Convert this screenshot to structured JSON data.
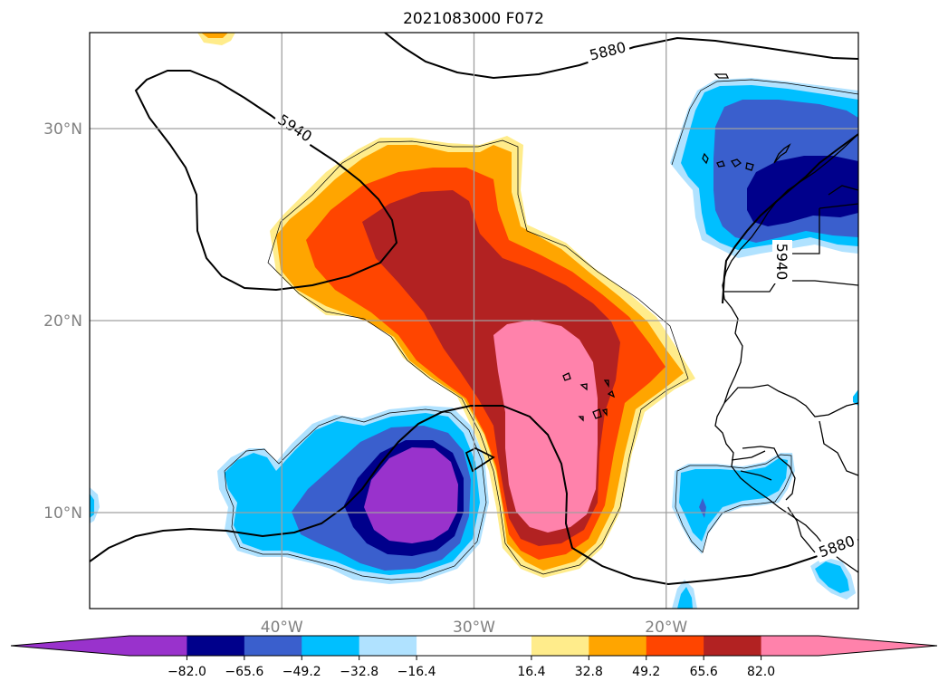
{
  "chart_data": {
    "type": "contour-map",
    "title": "2021083000 F072",
    "map": {
      "lon_range": [
        -50,
        -10
      ],
      "lat_range": [
        5,
        35
      ],
      "lon_ticks": [
        {
          "value": -40,
          "label": "40°W"
        },
        {
          "value": -30,
          "label": "30°W"
        },
        {
          "value": -20,
          "label": "20°W"
        }
      ],
      "lat_ticks": [
        {
          "value": 30,
          "label": "30°N"
        },
        {
          "value": 20,
          "label": "20°N"
        },
        {
          "value": 10,
          "label": "10°N"
        }
      ],
      "grid": true
    },
    "contour_lines": [
      {
        "value": 5880,
        "label": "5880"
      },
      {
        "value": 5940,
        "label": "5940"
      }
    ],
    "colorbar": {
      "orientation": "horizontal",
      "extend": "both",
      "levels": [
        -98.4,
        -82.0,
        -65.6,
        -49.2,
        -32.8,
        -16.4,
        16.4,
        32.8,
        49.2,
        65.6,
        82.0,
        98.4
      ],
      "colors": [
        "#9932cc",
        "#00008b",
        "#3a5fcd",
        "#00bfff",
        "#b0e2ff",
        "#ffffff",
        "#ffec8b",
        "#ffa500",
        "#ff4500",
        "#b22222",
        "#ff82ab"
      ],
      "under_color": "#9932cc",
      "over_color": "#ff82ab",
      "tick_labels": [
        "−82.0",
        "−65.6",
        "−49.2",
        "−32.8",
        "−16.4",
        "16.4",
        "32.8",
        "49.2",
        "65.6",
        "82.0"
      ]
    },
    "colors": {
      "purple": "#9932cc",
      "navy": "#00008b",
      "royalblue": "#3a5fcd",
      "deepskyblue": "#00bfff",
      "lightblue": "#b0e2ff",
      "lightyellow": "#ffec8b",
      "orange": "#ffa500",
      "orangered": "#ff4500",
      "firebrick": "#b22222",
      "pink": "#ff82ab"
    }
  }
}
